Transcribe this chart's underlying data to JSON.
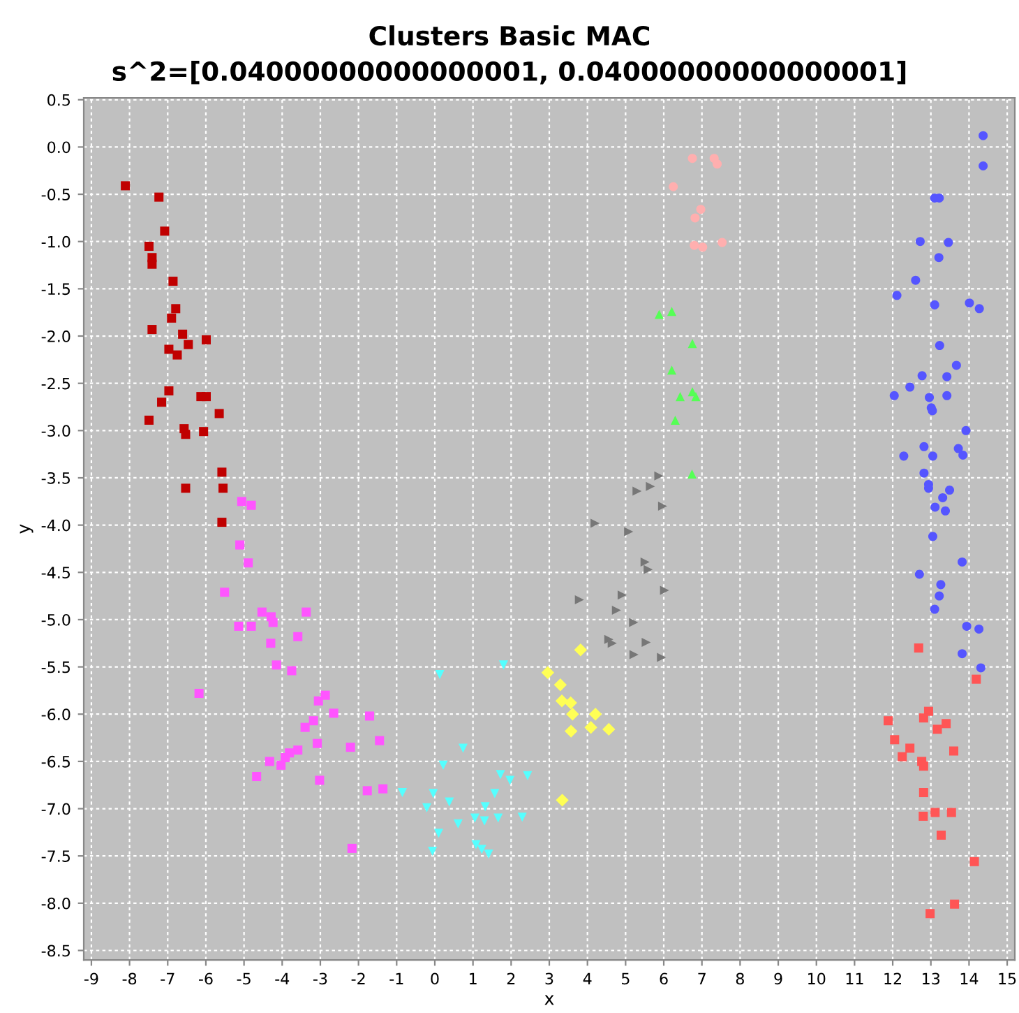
{
  "chart_data": {
    "type": "scatter",
    "title": "Clusters Basic MAC",
    "subtitle": "s^2=[0.04000000000000001, 0.04000000000000001]",
    "xlabel": "x",
    "ylabel": "y",
    "xlim": [
      -9.2,
      15.2
    ],
    "ylim": [
      -8.6,
      0.52
    ],
    "xticks": [
      -9,
      -8,
      -7,
      -6,
      -5,
      -4,
      -3,
      -2,
      -1,
      0,
      1,
      2,
      3,
      4,
      5,
      6,
      7,
      8,
      9,
      10,
      11,
      12,
      13,
      14,
      15
    ],
    "yticks": [
      0.5,
      {
        "value": 0,
        "label": "0.0"
      },
      -0.5,
      {
        "value": -1,
        "label": "-1.0"
      },
      -1.5,
      {
        "value": -2,
        "label": "-2.0"
      },
      -2.5,
      {
        "value": -3,
        "label": "-3.0"
      },
      -3.5,
      {
        "value": -4,
        "label": "-4.0"
      },
      -4.5,
      {
        "value": -5,
        "label": "-5.0"
      },
      -5.5,
      {
        "value": -6,
        "label": "-6.0"
      },
      -6.5,
      {
        "value": -7,
        "label": "-7.0"
      },
      -7.5,
      {
        "value": -8,
        "label": "-8.0"
      },
      -8.5
    ],
    "grid": true,
    "series": [
      {
        "color": "#c00000",
        "marker": "square",
        "x": [
          -8.11,
          -7.23,
          -7.08,
          -7.49,
          -7.41,
          -7.41,
          -6.86,
          -6.79,
          -6.9,
          -7.41,
          -6.61,
          -6.46,
          -5.99,
          -6.97,
          -6.75,
          -6.97,
          -7.16,
          -6.13,
          -5.99,
          -5.65,
          -7.49,
          -6.57,
          -6.53,
          -6.06,
          -5.58,
          -5.55,
          -6.53,
          -5.58
        ],
        "values": [
          -0.41,
          -0.53,
          -0.89,
          -1.05,
          -1.17,
          -1.24,
          -1.42,
          -1.71,
          -1.81,
          -1.93,
          -1.98,
          -2.09,
          -2.04,
          -2.14,
          -2.2,
          -2.58,
          -2.7,
          -2.64,
          -2.64,
          -2.82,
          -2.89,
          -2.98,
          -3.04,
          -3.01,
          -3.44,
          -3.61,
          -3.61,
          -3.97
        ]
      },
      {
        "color": "#ff55ff",
        "marker": "square",
        "x": [
          -5.06,
          -4.81,
          -5.11,
          -4.89,
          -5.51,
          -4.53,
          -4.29,
          -4.24,
          -3.37,
          -5.14,
          -4.81,
          -3.59,
          -4.3,
          -4.15,
          -3.75,
          -6.18,
          -2.87,
          -3.05,
          -2.65,
          -1.71,
          -3.18,
          -3.4,
          -3.08,
          -2.21,
          -1.45,
          -3.59,
          -3.81,
          -3.92,
          -4.33,
          -4.03,
          -4.67,
          -3.02,
          -1.77,
          -1.36,
          -2.17
        ],
        "values": [
          -3.75,
          -3.79,
          -4.21,
          -4.4,
          -4.71,
          -4.92,
          -4.97,
          -5.03,
          -4.92,
          -5.07,
          -5.07,
          -5.18,
          -5.25,
          -5.48,
          -5.54,
          -5.78,
          -5.8,
          -5.86,
          -5.99,
          -6.02,
          -6.07,
          -6.14,
          -6.31,
          -6.35,
          -6.28,
          -6.38,
          -6.41,
          -6.46,
          -6.5,
          -6.54,
          -6.66,
          -6.7,
          -6.81,
          -6.79,
          -7.42
        ]
      },
      {
        "color": "#55ffff",
        "marker": "triangle-down",
        "x": [
          0.13,
          1.8,
          0.74,
          0.22,
          1.72,
          1.97,
          2.43,
          -0.85,
          -0.04,
          1.57,
          0.38,
          -0.21,
          1.32,
          1.05,
          1.3,
          1.66,
          2.29,
          0.61,
          0.1,
          -0.06,
          1.08,
          1.23,
          1.41
        ],
        "values": [
          -5.58,
          -5.48,
          -6.36,
          -6.54,
          -6.64,
          -6.7,
          -6.65,
          -6.83,
          -6.84,
          -6.84,
          -6.93,
          -6.99,
          -6.98,
          -7.1,
          -7.13,
          -7.1,
          -7.09,
          -7.16,
          -7.26,
          -7.45,
          -7.38,
          -7.43,
          -7.48
        ]
      },
      {
        "color": "#ffafaf",
        "marker": "circle",
        "x": [
          6.75,
          7.32,
          7.4,
          6.25,
          6.97,
          6.82,
          6.8,
          7.02,
          7.53
        ],
        "values": [
          -0.12,
          -0.12,
          -0.18,
          -0.42,
          -0.66,
          -0.75,
          -1.04,
          -1.06,
          -1.01
        ]
      },
      {
        "color": "#55ff55",
        "marker": "triangle",
        "x": [
          5.88,
          6.21,
          6.75,
          6.21,
          6.43,
          6.75,
          6.84,
          6.3,
          6.74
        ],
        "values": [
          -1.77,
          -1.74,
          -2.08,
          -2.36,
          -2.64,
          -2.59,
          -2.64,
          -2.89,
          -3.46
        ]
      },
      {
        "color": "#777777",
        "marker": "triangle-right",
        "x": [
          5.87,
          5.3,
          5.65,
          5.97,
          4.2,
          5.08,
          5.51,
          5.59,
          6.02,
          3.79,
          4.91,
          4.76,
          5.21,
          4.56,
          4.65,
          5.54,
          5.22,
          5.94
        ],
        "values": [
          -3.48,
          -3.64,
          -3.59,
          -3.8,
          -3.98,
          -4.07,
          -4.39,
          -4.47,
          -4.69,
          -4.79,
          -4.74,
          -4.9,
          -5.03,
          -5.21,
          -5.25,
          -5.24,
          -5.37,
          -5.4
        ]
      },
      {
        "color": "#ffff55",
        "marker": "diamond",
        "x": [
          3.82,
          2.96,
          3.29,
          3.33,
          3.56,
          3.61,
          4.21,
          4.09,
          3.57,
          4.56,
          3.34
        ],
        "values": [
          -5.32,
          -5.56,
          -5.69,
          -5.86,
          -5.88,
          -6.0,
          -6.0,
          -6.14,
          -6.18,
          -6.16,
          -6.91
        ]
      },
      {
        "color": "#5555ff",
        "marker": "circle",
        "x": [
          14.37,
          14.37,
          13.1,
          13.22,
          12.72,
          13.46,
          13.21,
          12.6,
          12.11,
          13.1,
          14.01,
          14.27,
          13.23,
          13.67,
          12.77,
          13.42,
          12.45,
          12.04,
          12.96,
          13.42,
          13.01,
          13.04,
          13.92,
          12.82,
          12.29,
          13.05,
          13.72,
          13.84,
          12.82,
          12.94,
          12.94,
          13.49,
          13.31,
          13.11,
          13.38,
          13.05,
          13.82,
          12.7,
          13.26,
          13.22,
          13.1,
          13.94,
          14.26,
          13.82,
          14.31
        ],
        "values": [
          0.12,
          -0.2,
          -0.54,
          -0.54,
          -1.0,
          -1.01,
          -1.17,
          -1.41,
          -1.57,
          -1.67,
          -1.65,
          -1.71,
          -2.1,
          -2.31,
          -2.42,
          -2.43,
          -2.54,
          -2.63,
          -2.65,
          -2.63,
          -2.76,
          -2.79,
          -3.0,
          -3.17,
          -3.27,
          -3.27,
          -3.19,
          -3.26,
          -3.45,
          -3.57,
          -3.61,
          -3.63,
          -3.71,
          -3.81,
          -3.85,
          -4.12,
          -4.39,
          -4.52,
          -4.63,
          -4.75,
          -4.89,
          -5.07,
          -5.1,
          -5.36,
          -5.51
        ]
      },
      {
        "color": "#ff5555",
        "marker": "square",
        "x": [
          12.68,
          14.19,
          12.94,
          12.81,
          11.88,
          13.4,
          13.17,
          12.05,
          12.45,
          12.25,
          13.6,
          12.76,
          12.81,
          12.81,
          13.11,
          13.54,
          12.8,
          13.27,
          14.14,
          13.62,
          12.98
        ],
        "values": [
          -5.3,
          -5.63,
          -5.97,
          -6.04,
          -6.07,
          -6.1,
          -6.16,
          -6.27,
          -6.36,
          -6.45,
          -6.39,
          -6.5,
          -6.55,
          -6.83,
          -7.04,
          -7.04,
          -7.08,
          -7.28,
          -7.56,
          -8.01,
          -8.11
        ]
      }
    ]
  }
}
